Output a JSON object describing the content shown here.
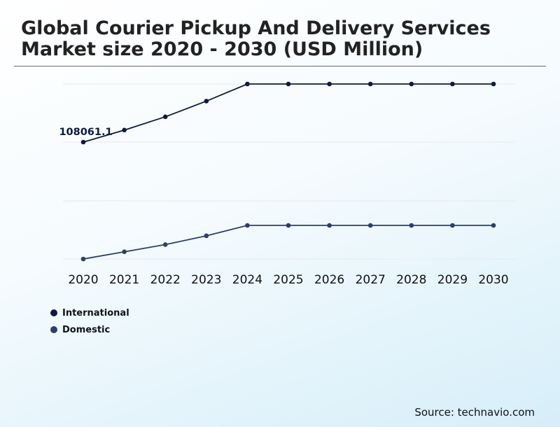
{
  "title": "Global Courier Pickup And Delivery Services Market size 2020 - 2030 (USD Million)",
  "source": "Source: technavio.com",
  "colors": {
    "international": "#0d1b3e",
    "domestic": "#2d3e6b",
    "grid": "#e6e9ee"
  },
  "chart_data": {
    "type": "line",
    "title": "Global Courier Pickup And Delivery Services Market size 2020 - 2030 (USD Million)",
    "categories": [
      "2020",
      "2021",
      "2022",
      "2023",
      "2024",
      "2025",
      "2026",
      "2027",
      "2028",
      "2029",
      "2030"
    ],
    "legend_position": "bottom-left",
    "grid": true,
    "series": [
      {
        "name": "International",
        "panel": "top",
        "values": [
          100000,
          108061.1,
          117000,
          127500,
          139000,
          139000,
          139000,
          139000,
          139000,
          139000,
          139000
        ]
      },
      {
        "name": "Domestic",
        "panel": "bottom",
        "values": [
          60000,
          64500,
          69000,
          74500,
          81000,
          81000,
          81000,
          81000,
          81000,
          81000,
          81000
        ]
      }
    ],
    "annotations": [
      {
        "series": "International",
        "category": "2021",
        "label": "108061.1"
      }
    ]
  }
}
